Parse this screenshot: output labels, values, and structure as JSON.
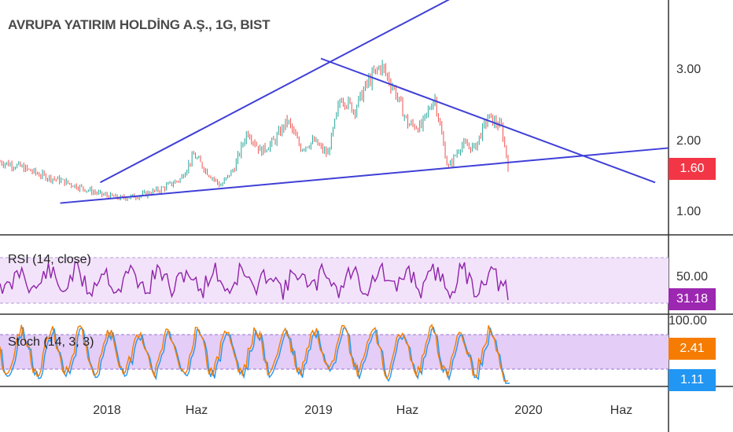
{
  "header": {
    "title": "AVRUPA YATIRIM HOLDİNG A.Ş., 1G, BIST"
  },
  "price_axis": {
    "ticks": [
      "3.00",
      "2.00",
      "1.00"
    ],
    "last_price": "1.60",
    "last_price_color": "#f23645"
  },
  "rsi": {
    "label": "RSI (14, close)",
    "tick": "50.00",
    "value": "31.18",
    "value_color": "#9c27b0",
    "line_color": "#8e24aa",
    "band_fill": "#f3e3fa"
  },
  "stoch": {
    "label": "Stoch (14, 3, 3)",
    "tick": "100.00",
    "k_value": "2.41",
    "d_value": "1.11",
    "k_color": "#f57c00",
    "d_color": "#2196f3",
    "band_fill": "#e4cdf7"
  },
  "time_axis": {
    "labels": [
      "2018",
      "Haz",
      "2019",
      "Haz",
      "2020",
      "Haz"
    ]
  },
  "colors": {
    "trendline": "#3f3fd8",
    "candle_up": "#26a69a",
    "candle_down": "#ef5350",
    "separator": "#333333"
  },
  "chart_data": {
    "type": "candlestick",
    "title": "AVRUPA YATIRIM HOLDİNG A.Ş., 1G, BIST",
    "ylim": [
      0.6,
      4.0
    ],
    "y_ticks": [
      1.0,
      2.0,
      3.0
    ],
    "x_labels": [
      "2018",
      "Haz",
      "2019",
      "Haz",
      "2020",
      "Haz"
    ],
    "close_path": [
      {
        "t": 0.0,
        "v": 1.65
      },
      {
        "t": 0.03,
        "v": 1.58
      },
      {
        "t": 0.06,
        "v": 1.46
      },
      {
        "t": 0.09,
        "v": 1.38
      },
      {
        "t": 0.12,
        "v": 1.28
      },
      {
        "t": 0.15,
        "v": 1.18
      },
      {
        "t": 0.18,
        "v": 1.12
      },
      {
        "t": 0.21,
        "v": 1.16
      },
      {
        "t": 0.24,
        "v": 1.25
      },
      {
        "t": 0.27,
        "v": 1.4
      },
      {
        "t": 0.29,
        "v": 1.75
      },
      {
        "t": 0.31,
        "v": 1.5
      },
      {
        "t": 0.33,
        "v": 1.3
      },
      {
        "t": 0.35,
        "v": 1.55
      },
      {
        "t": 0.37,
        "v": 2.1
      },
      {
        "t": 0.39,
        "v": 1.8
      },
      {
        "t": 0.41,
        "v": 1.95
      },
      {
        "t": 0.43,
        "v": 2.25
      },
      {
        "t": 0.45,
        "v": 1.85
      },
      {
        "t": 0.47,
        "v": 1.95
      },
      {
        "t": 0.49,
        "v": 1.75
      },
      {
        "t": 0.51,
        "v": 2.6
      },
      {
        "t": 0.53,
        "v": 2.4
      },
      {
        "t": 0.55,
        "v": 2.8
      },
      {
        "t": 0.57,
        "v": 3.05
      },
      {
        "t": 0.59,
        "v": 2.7
      },
      {
        "t": 0.61,
        "v": 2.2
      },
      {
        "t": 0.63,
        "v": 2.15
      },
      {
        "t": 0.65,
        "v": 2.6
      },
      {
        "t": 0.67,
        "v": 1.55
      },
      {
        "t": 0.69,
        "v": 1.9
      },
      {
        "t": 0.71,
        "v": 1.85
      },
      {
        "t": 0.73,
        "v": 2.3
      },
      {
        "t": 0.75,
        "v": 2.15
      },
      {
        "t": 0.76,
        "v": 1.6
      }
    ],
    "last_price": 1.6,
    "trendlines": [
      {
        "name": "upper-rising",
        "from": {
          "t": 0.15,
          "v": 1.35
        },
        "to": {
          "t": 0.69,
          "v": 4.1
        }
      },
      {
        "name": "upper-falling",
        "from": {
          "t": 0.48,
          "v": 3.15
        },
        "to": {
          "t": 0.98,
          "v": 1.35
        }
      },
      {
        "name": "lower-support",
        "from": {
          "t": 0.09,
          "v": 1.05
        },
        "to": {
          "t": 1.0,
          "v": 1.85
        }
      }
    ],
    "rsi_value": 31.18,
    "stoch_k": 2.41,
    "stoch_d": 1.11
  }
}
